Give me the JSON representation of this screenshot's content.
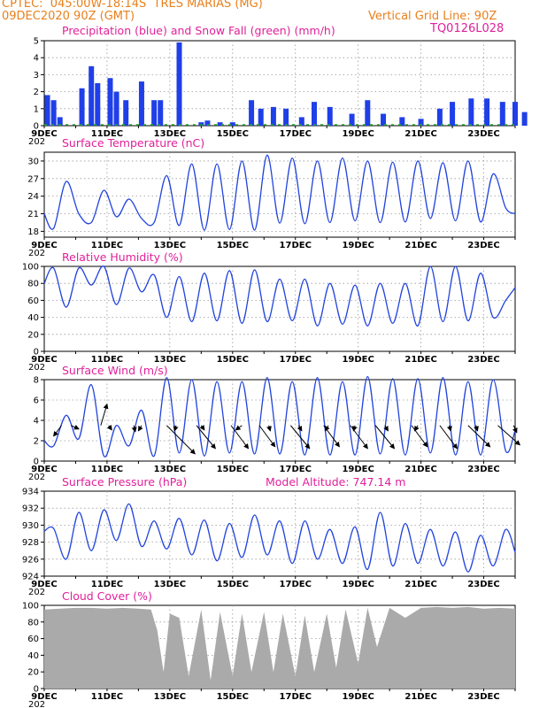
{
  "header": {
    "line1": "CPTEC:  045:00W-18:14S  TRES MARIAS (MG)",
    "line2": "09DEC2020 90Z (GMT)",
    "grid_note": "Vertical Grid Line: 90Z",
    "code": "TQ0126L028",
    "orange": "#e8801c",
    "magenta": "#e0209a"
  },
  "colors": {
    "precip": "#1f3fe8",
    "snow": "#22aa22",
    "line": "#2244dd",
    "cloud": "#aaaaaa",
    "arrow": "#000000"
  },
  "date_labels": [
    "9DEC",
    "11DEC",
    "13DEC",
    "15DEC",
    "17DEC",
    "19DEC",
    "21DEC",
    "23DEC"
  ],
  "date_stub": "202",
  "chart_data": [
    {
      "type": "bar",
      "title": "Precipitation (blue) and Snow Fall (green) (mm/h)",
      "ylim": [
        0,
        5
      ],
      "yticks": [
        0,
        1,
        2,
        3,
        4,
        5
      ],
      "x": [
        0.1,
        0.3,
        0.5,
        1.2,
        1.5,
        1.7,
        2.1,
        2.3,
        2.6,
        3.1,
        3.5,
        3.7,
        4.3,
        5.0,
        5.2,
        5.6,
        6.0,
        6.6,
        6.9,
        7.3,
        7.7,
        8.2,
        8.6,
        9.1,
        9.8,
        10.3,
        10.8,
        11.4,
        12.0,
        12.6,
        13.0,
        13.6,
        14.1,
        14.6,
        15.0,
        15.3
      ],
      "values": [
        1.8,
        1.5,
        0.5,
        2.2,
        3.5,
        2.5,
        2.8,
        2.0,
        1.5,
        2.6,
        1.5,
        1.5,
        4.9,
        0.2,
        0.3,
        0.2,
        0.2,
        1.5,
        1.0,
        1.1,
        1.0,
        0.5,
        1.4,
        1.1,
        0.7,
        1.5,
        0.7,
        0.5,
        0.4,
        1.0,
        1.4,
        1.6,
        1.6,
        1.4,
        1.4,
        0.8
      ],
      "snow_values": [
        0,
        0,
        0,
        0,
        0,
        0,
        0,
        0,
        0,
        0,
        0,
        0,
        0,
        0,
        0,
        0,
        0,
        0,
        0,
        0,
        0,
        0,
        0,
        0,
        0,
        0,
        0,
        0,
        0,
        0,
        0,
        0,
        0,
        0,
        0,
        0
      ],
      "xlabel": "",
      "ylabel": ""
    },
    {
      "type": "line",
      "title": "Surface Temperature (nC)",
      "ylim": [
        17,
        31.5
      ],
      "yticks": [
        18,
        21,
        24,
        27,
        30
      ],
      "x": [
        0,
        0.3,
        0.7,
        1.1,
        1.5,
        1.9,
        2.3,
        2.7,
        3.1,
        3.5,
        3.9,
        4.3,
        4.7,
        5.1,
        5.5,
        5.9,
        6.3,
        6.7,
        7.1,
        7.5,
        7.9,
        8.3,
        8.7,
        9.1,
        9.5,
        9.9,
        10.3,
        10.7,
        11.1,
        11.5,
        11.9,
        12.3,
        12.7,
        13.1,
        13.5,
        13.9,
        14.3,
        14.7,
        15.0
      ],
      "values": [
        21,
        18.5,
        26.5,
        21,
        19.5,
        25,
        20.5,
        23.5,
        20.2,
        19.5,
        27.5,
        19,
        29.5,
        18.2,
        29.5,
        18.3,
        30,
        18.2,
        31,
        19.4,
        30.5,
        19.3,
        30,
        19.5,
        30.5,
        19.8,
        30,
        19.5,
        29.8,
        19.6,
        30,
        20.2,
        29.7,
        19.8,
        30,
        19.6,
        27.8,
        22,
        21
      ],
      "xlabel": "",
      "ylabel": ""
    },
    {
      "type": "line",
      "title": "Relative Humidity (%)",
      "ylim": [
        0,
        100
      ],
      "yticks": [
        0,
        20,
        40,
        60,
        80,
        100
      ],
      "x": [
        0,
        0.3,
        0.7,
        1.1,
        1.5,
        1.9,
        2.3,
        2.7,
        3.1,
        3.5,
        3.9,
        4.3,
        4.7,
        5.1,
        5.5,
        5.9,
        6.3,
        6.7,
        7.1,
        7.5,
        7.9,
        8.3,
        8.7,
        9.1,
        9.5,
        9.9,
        10.3,
        10.7,
        11.1,
        11.5,
        11.9,
        12.3,
        12.7,
        13.1,
        13.5,
        13.9,
        14.3,
        14.7,
        15.0
      ],
      "values": [
        80,
        98,
        52,
        98,
        78,
        100,
        55,
        98,
        70,
        90,
        40,
        88,
        35,
        92,
        36,
        95,
        33,
        96,
        35,
        85,
        36,
        85,
        30,
        80,
        32,
        78,
        30,
        80,
        33,
        80,
        30,
        100,
        35,
        100,
        36,
        92,
        40,
        60,
        75
      ],
      "xlabel": "",
      "ylabel": ""
    },
    {
      "type": "line",
      "title": "Surface Wind (m/s)",
      "ylim": [
        0,
        8
      ],
      "yticks": [
        0,
        2,
        4,
        6,
        8
      ],
      "x": [
        0,
        0.3,
        0.7,
        1.1,
        1.5,
        1.9,
        2.3,
        2.7,
        3.1,
        3.5,
        3.9,
        4.3,
        4.7,
        5.1,
        5.5,
        5.9,
        6.3,
        6.7,
        7.1,
        7.5,
        7.9,
        8.3,
        8.7,
        9.1,
        9.5,
        9.9,
        10.3,
        10.7,
        11.1,
        11.5,
        11.9,
        12.3,
        12.7,
        13.1,
        13.5,
        13.9,
        14.3,
        14.7,
        15.0
      ],
      "values": [
        2,
        1.5,
        4.5,
        2.2,
        7.5,
        0.5,
        3.5,
        1.5,
        5,
        0.5,
        8.2,
        0.8,
        8,
        0.5,
        7.8,
        0.8,
        7.8,
        0.7,
        8.2,
        0.7,
        7.8,
        0.6,
        8.2,
        0.6,
        7.8,
        0.6,
        8.3,
        0.7,
        8.1,
        0.6,
        8.1,
        0.8,
        8.2,
        0.6,
        7.8,
        0.6,
        8,
        1,
        3
      ],
      "arrows": [
        {
          "x": 0.55,
          "dx": -0.25,
          "dy": 0.6
        },
        {
          "x": 0.85,
          "dx": 0.25,
          "dy": 0.2
        },
        {
          "x": 1.8,
          "dx": 0.2,
          "dy": -1.2
        },
        {
          "x": 2.05,
          "dx": 0.1,
          "dy": 0.25
        },
        {
          "x": 2.85,
          "dx": 0.05,
          "dy": 0.35
        },
        {
          "x": 3.1,
          "dx": -0.1,
          "dy": 0.3
        },
        {
          "x": 3.9,
          "dx": 0.9,
          "dy": 1.6
        },
        {
          "x": 4.2,
          "dx": -0.05,
          "dy": 0.3
        },
        {
          "x": 4.85,
          "dx": 0.6,
          "dy": 1.3
        },
        {
          "x": 5.0,
          "dx": 0.1,
          "dy": 0.25
        },
        {
          "x": 5.95,
          "dx": 0.55,
          "dy": 1.3
        },
        {
          "x": 6.3,
          "dx": -0.2,
          "dy": 0.25
        },
        {
          "x": 6.85,
          "dx": 0.5,
          "dy": 1.2
        },
        {
          "x": 7.15,
          "dx": 0.05,
          "dy": 0.3
        },
        {
          "x": 7.85,
          "dx": 0.6,
          "dy": 1.3
        },
        {
          "x": 8.1,
          "dx": 0.1,
          "dy": 0.3
        },
        {
          "x": 8.9,
          "dx": 0.5,
          "dy": 1.2
        },
        {
          "x": 9.05,
          "dx": -0.1,
          "dy": 0.3
        },
        {
          "x": 9.75,
          "dx": 0.55,
          "dy": 1.3
        },
        {
          "x": 9.9,
          "dx": -0.05,
          "dy": 0.3
        },
        {
          "x": 10.55,
          "dx": 0.6,
          "dy": 1.3
        },
        {
          "x": 10.85,
          "dx": 0.1,
          "dy": 0.3
        },
        {
          "x": 11.7,
          "dx": 0.5,
          "dy": 1.2
        },
        {
          "x": 11.9,
          "dx": -0.1,
          "dy": 0.3
        },
        {
          "x": 12.6,
          "dx": 0.55,
          "dy": 1.3
        },
        {
          "x": 12.9,
          "dx": 0.05,
          "dy": 0.3
        },
        {
          "x": 13.5,
          "dx": 0.7,
          "dy": 1.2
        },
        {
          "x": 13.75,
          "dx": 0.05,
          "dy": 0.3
        },
        {
          "x": 14.45,
          "dx": 0.7,
          "dy": 1.1
        },
        {
          "x": 14.95,
          "dx": 0.1,
          "dy": 0.4
        }
      ],
      "xlabel": "",
      "ylabel": ""
    },
    {
      "type": "line",
      "title": "Surface Pressure (hPa)",
      "annotation": "Model Altitude: 747.14 m",
      "ylim": [
        924,
        934
      ],
      "yticks": [
        924,
        926,
        928,
        930,
        932,
        934
      ],
      "x": [
        0,
        0.3,
        0.7,
        1.1,
        1.5,
        1.9,
        2.3,
        2.7,
        3.1,
        3.5,
        3.9,
        4.3,
        4.7,
        5.1,
        5.5,
        5.9,
        6.3,
        6.7,
        7.1,
        7.5,
        7.9,
        8.3,
        8.7,
        9.1,
        9.5,
        9.9,
        10.3,
        10.7,
        11.1,
        11.5,
        11.9,
        12.3,
        12.7,
        13.1,
        13.5,
        13.9,
        14.3,
        14.7,
        15.0
      ],
      "values": [
        929.3,
        929.6,
        926,
        931.5,
        927,
        931.8,
        928.2,
        932.5,
        927.5,
        930.5,
        927.2,
        930.8,
        926.5,
        930.6,
        925.8,
        930.2,
        926.2,
        931.2,
        926.5,
        930.5,
        925.5,
        930.5,
        926,
        929.5,
        925.5,
        929.8,
        924.8,
        931.5,
        925.2,
        930.2,
        925.5,
        929.5,
        925.2,
        929.2,
        924.5,
        928.8,
        925.2,
        929.5,
        926.8
      ],
      "xlabel": "",
      "ylabel": ""
    },
    {
      "type": "area",
      "title": "Cloud Cover (%)",
      "ylim": [
        0,
        100
      ],
      "yticks": [
        0,
        20,
        40,
        60,
        80,
        100
      ],
      "x": [
        0,
        0.5,
        1.0,
        1.5,
        2.0,
        2.5,
        3.0,
        3.4,
        3.6,
        3.8,
        4.0,
        4.3,
        4.6,
        5.0,
        5.3,
        5.6,
        6.0,
        6.3,
        6.6,
        7.0,
        7.3,
        7.6,
        8.0,
        8.3,
        8.6,
        9.0,
        9.3,
        9.6,
        10.0,
        10.3,
        10.6,
        11.0,
        11.5,
        12.0,
        12.5,
        13.0,
        13.5,
        14.0,
        14.5,
        15.0
      ],
      "values": [
        95,
        96,
        97,
        97,
        96,
        97,
        96,
        95,
        70,
        20,
        90,
        85,
        15,
        95,
        10,
        92,
        15,
        90,
        20,
        92,
        20,
        90,
        15,
        88,
        20,
        90,
        25,
        95,
        30,
        97,
        50,
        97,
        85,
        97,
        98,
        97,
        98,
        96,
        97,
        96
      ],
      "xlabel": "",
      "ylabel": ""
    }
  ]
}
